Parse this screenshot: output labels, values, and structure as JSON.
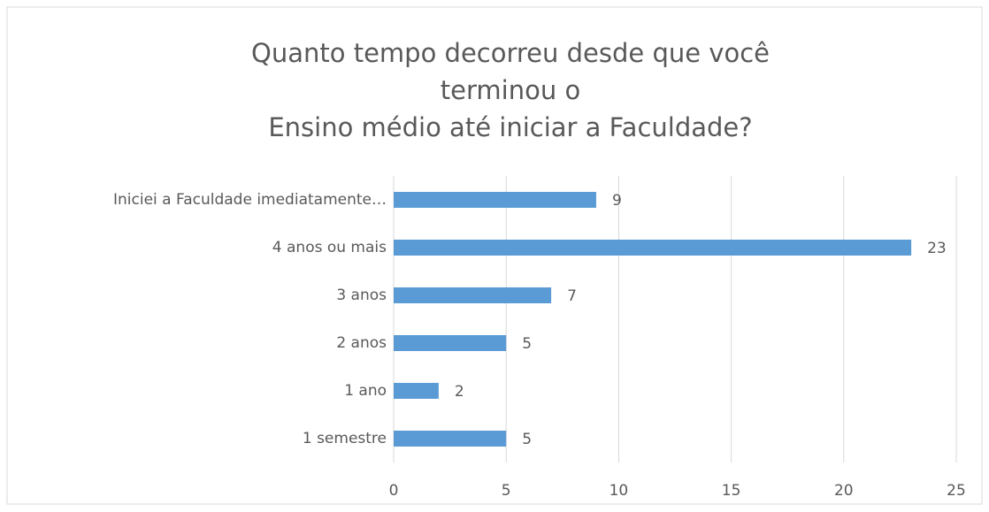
{
  "chart_data": {
    "type": "bar",
    "orientation": "horizontal",
    "title": [
      "Quanto tempo decorreu desde que você",
      "terminou o",
      "Ensino médio até iniciar a Faculdade?"
    ],
    "categories": [
      "Iniciei a Faculdade imediatamente…",
      "4 anos ou mais",
      "3 anos",
      "2 anos",
      "1 ano",
      "1 semestre"
    ],
    "values": [
      9,
      23,
      7,
      5,
      2,
      5
    ],
    "color": "#5b9bd5",
    "xlim": [
      0,
      25
    ],
    "xticks": [
      0,
      5,
      10,
      15,
      20,
      25
    ],
    "grid": true
  }
}
